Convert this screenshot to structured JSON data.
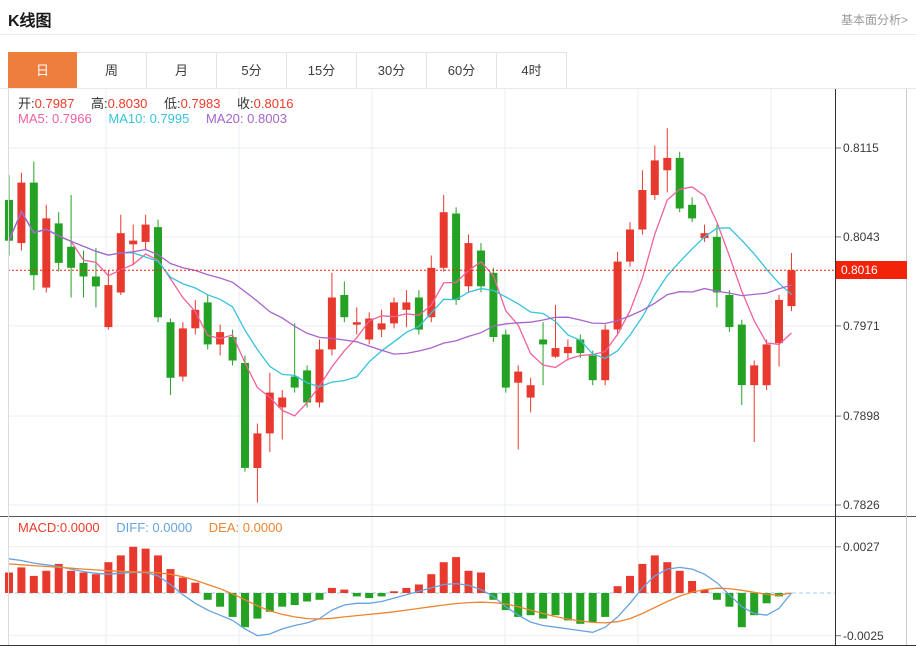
{
  "header": {
    "title": "K线图",
    "link_label": "基本面分析>"
  },
  "tabs": [
    {
      "label": "日",
      "active": true
    },
    {
      "label": "周",
      "active": false
    },
    {
      "label": "月",
      "active": false
    },
    {
      "label": "5分",
      "active": false
    },
    {
      "label": "15分",
      "active": false
    },
    {
      "label": "30分",
      "active": false
    },
    {
      "label": "60分",
      "active": false
    },
    {
      "label": "4时",
      "active": false
    }
  ],
  "legend": {
    "ohlc": [
      {
        "label": "开:",
        "value": "0.7987"
      },
      {
        "label": "高:",
        "value": "0.8030"
      },
      {
        "label": "低:",
        "value": "0.7983"
      },
      {
        "label": "收:",
        "value": "0.8016"
      }
    ],
    "ma": [
      {
        "label": "MA5:",
        "value": "0.7966"
      },
      {
        "label": "MA10:",
        "value": "0.7995"
      },
      {
        "label": "MA20:",
        "value": "0.8003"
      }
    ],
    "macd": [
      {
        "label": "MACD:",
        "value": "0.0000"
      },
      {
        "label": "DIFF:",
        "value": "0.0000"
      },
      {
        "label": "DEA:",
        "value": "0.0000"
      }
    ]
  },
  "axis": {
    "main_ticks": [
      "0.8115",
      "0.8043",
      "0.7971",
      "0.7898",
      "0.7826"
    ],
    "current_price": "0.8016",
    "macd_ticks": [
      "0.0027",
      "-0.0025"
    ]
  },
  "colors": {
    "up": "#e8392f",
    "down": "#23a223",
    "ma5": "#f0619e",
    "ma10": "#36c3dc",
    "ma20": "#a964cc",
    "diff": "#66a3e0",
    "dea": "#ef8430",
    "tab_active": "#ee7e3e",
    "price_tag": "#f3230a",
    "grid": "#e9eff5",
    "value_red": "#ee3b28"
  },
  "chart_data": {
    "type": "candlestick+macd",
    "title": "K线图",
    "legend_position": "top-left",
    "grid": true,
    "price_axis_ticks": [
      0.8115,
      0.8043,
      0.7971,
      0.7898,
      0.7826
    ],
    "macd_axis_ticks": [
      0.0027,
      -0.0025
    ],
    "current_price": 0.8016,
    "ohlc_display": {
      "open": 0.7987,
      "high": 0.803,
      "low": 0.7983,
      "close": 0.8016
    },
    "ma_display": {
      "ma5": 0.7966,
      "ma10": 0.7995,
      "ma20": 0.8003
    },
    "ma_periods": [
      5,
      10,
      20
    ],
    "candles_ohlc": [
      [
        0.8073,
        0.8093,
        0.8028,
        0.804
      ],
      [
        0.8038,
        0.8095,
        0.8032,
        0.8087
      ],
      [
        0.8087,
        0.8104,
        0.8,
        0.8012
      ],
      [
        0.8002,
        0.8069,
        0.7998,
        0.8058
      ],
      [
        0.8054,
        0.8063,
        0.8015,
        0.8022
      ],
      [
        0.8035,
        0.8077,
        0.7994,
        0.8018
      ],
      [
        0.8022,
        0.8032,
        0.7994,
        0.8011
      ],
      [
        0.8011,
        0.8034,
        0.7986,
        0.8003
      ],
      [
        0.797,
        0.8016,
        0.7968,
        0.8004
      ],
      [
        0.7998,
        0.8061,
        0.7996,
        0.8046
      ],
      [
        0.8037,
        0.8053,
        0.802,
        0.804
      ],
      [
        0.8039,
        0.8061,
        0.8032,
        0.8053
      ],
      [
        0.8051,
        0.8057,
        0.7974,
        0.7978
      ],
      [
        0.7974,
        0.7977,
        0.7915,
        0.7929
      ],
      [
        0.793,
        0.7974,
        0.7926,
        0.7969
      ],
      [
        0.7969,
        0.7992,
        0.7964,
        0.7984
      ],
      [
        0.799,
        0.7996,
        0.7952,
        0.7956
      ],
      [
        0.7956,
        0.7972,
        0.7947,
        0.7966
      ],
      [
        0.7962,
        0.7968,
        0.7939,
        0.7943
      ],
      [
        0.7941,
        0.7947,
        0.7853,
        0.7856
      ],
      [
        0.7856,
        0.7892,
        0.7828,
        0.7884
      ],
      [
        0.7884,
        0.7933,
        0.7869,
        0.7917
      ],
      [
        0.7905,
        0.7919,
        0.7879,
        0.7913
      ],
      [
        0.793,
        0.7973,
        0.7917,
        0.7921
      ],
      [
        0.7935,
        0.7939,
        0.7905,
        0.7909
      ],
      [
        0.7909,
        0.796,
        0.7905,
        0.7952
      ],
      [
        0.7952,
        0.8014,
        0.7947,
        0.7994
      ],
      [
        0.7996,
        0.8007,
        0.7974,
        0.7978
      ],
      [
        0.7972,
        0.7986,
        0.7964,
        0.7974
      ],
      [
        0.796,
        0.7982,
        0.7956,
        0.7977
      ],
      [
        0.7968,
        0.7984,
        0.7962,
        0.7973
      ],
      [
        0.7973,
        0.7994,
        0.7969,
        0.799
      ],
      [
        0.7984,
        0.8,
        0.797,
        0.799
      ],
      [
        0.7994,
        0.8,
        0.7964,
        0.7968
      ],
      [
        0.7978,
        0.8028,
        0.7974,
        0.8018
      ],
      [
        0.8018,
        0.8077,
        0.8015,
        0.8063
      ],
      [
        0.8062,
        0.8067,
        0.7988,
        0.7992
      ],
      [
        0.8003,
        0.8045,
        0.7998,
        0.8038
      ],
      [
        0.8032,
        0.8038,
        0.7998,
        0.8003
      ],
      [
        0.8014,
        0.8018,
        0.7958,
        0.7962
      ],
      [
        0.7964,
        0.7968,
        0.7917,
        0.7921
      ],
      [
        0.7925,
        0.7939,
        0.7871,
        0.7934
      ],
      [
        0.7913,
        0.7929,
        0.7901,
        0.7923
      ],
      [
        0.796,
        0.7974,
        0.7923,
        0.7956
      ],
      [
        0.7946,
        0.7988,
        0.7945,
        0.7953
      ],
      [
        0.7949,
        0.796,
        0.7943,
        0.7954
      ],
      [
        0.796,
        0.7964,
        0.7945,
        0.7949
      ],
      [
        0.7947,
        0.7951,
        0.7923,
        0.7927
      ],
      [
        0.7927,
        0.7972,
        0.7923,
        0.7968
      ],
      [
        0.7968,
        0.8031,
        0.7964,
        0.8023
      ],
      [
        0.8023,
        0.8055,
        0.8019,
        0.8049
      ],
      [
        0.8049,
        0.8097,
        0.8045,
        0.8081
      ],
      [
        0.8077,
        0.8117,
        0.8073,
        0.8105
      ],
      [
        0.8097,
        0.8131,
        0.8079,
        0.8107
      ],
      [
        0.8107,
        0.8112,
        0.8063,
        0.8066
      ],
      [
        0.8069,
        0.8075,
        0.8055,
        0.8058
      ],
      [
        0.8042,
        0.8053,
        0.8039,
        0.8046
      ],
      [
        0.8043,
        0.8053,
        0.7986,
        0.7998
      ],
      [
        0.7996,
        0.8,
        0.7966,
        0.797
      ],
      [
        0.7972,
        0.7976,
        0.7907,
        0.7923
      ],
      [
        0.7923,
        0.7943,
        0.7877,
        0.7939
      ],
      [
        0.7923,
        0.796,
        0.7919,
        0.7956
      ],
      [
        0.7957,
        0.7996,
        0.7938,
        0.7992
      ],
      [
        0.7987,
        0.803,
        0.7983,
        0.8016
      ]
    ],
    "macd": {
      "unit": 0.0001,
      "display": {
        "macd": 0.0,
        "diff": 0.0,
        "dea": 0.0
      },
      "hist": [
        12,
        15,
        10,
        13,
        17,
        13,
        12,
        11,
        18,
        22,
        27,
        26,
        22,
        14,
        9,
        6,
        -4,
        -8,
        -14,
        -20,
        -15,
        -11,
        -8,
        -7,
        -5,
        -4,
        3,
        2,
        -2,
        -3,
        -2,
        1,
        3,
        5,
        11,
        18,
        21,
        13,
        12,
        -4,
        -10,
        -14,
        -13,
        -15,
        -13,
        -16,
        -18,
        -17,
        -14,
        4,
        10,
        17,
        22,
        18,
        13,
        7,
        2,
        -4,
        -8,
        -20,
        -13,
        -6,
        -2,
        0
      ],
      "diff": [
        20,
        19,
        17.5,
        16.5,
        15.5,
        14,
        12.5,
        11.5,
        11,
        11.5,
        12,
        12,
        10,
        5,
        -1,
        -6,
        -10,
        -13,
        -16,
        -21,
        -25,
        -24,
        -21,
        -19,
        -17.5,
        -15,
        -10,
        -7,
        -6,
        -6,
        -5,
        -3,
        -1,
        1,
        3,
        5,
        5.5,
        4.5,
        2,
        -2,
        -8,
        -13,
        -17,
        -19,
        -20,
        -21,
        -22,
        -23,
        -20,
        -14,
        -6,
        3,
        10,
        14,
        15,
        14,
        11,
        6,
        -1,
        -8,
        -12,
        -13,
        -9,
        0
      ],
      "dea": [
        17,
        16.5,
        16,
        15.5,
        15,
        14.5,
        14,
        13.5,
        13,
        12.7,
        12.4,
        12.2,
        11.8,
        11,
        9.5,
        7.5,
        5,
        2.5,
        -0.5,
        -4,
        -7.5,
        -10.5,
        -12.5,
        -14,
        -15,
        -15.2,
        -14.8,
        -14,
        -13.2,
        -12.5,
        -11.8,
        -11,
        -10,
        -9,
        -8,
        -7,
        -6.2,
        -5.6,
        -5.4,
        -5.6,
        -6.4,
        -8,
        -10,
        -12,
        -13.8,
        -15.2,
        -16.4,
        -17.2,
        -17.5,
        -16.8,
        -15,
        -12,
        -8.5,
        -5,
        -1.8,
        0.5,
        2,
        2.8,
        2.6,
        1.6,
        0.4,
        -0.8,
        -1.2,
        0
      ]
    }
  }
}
